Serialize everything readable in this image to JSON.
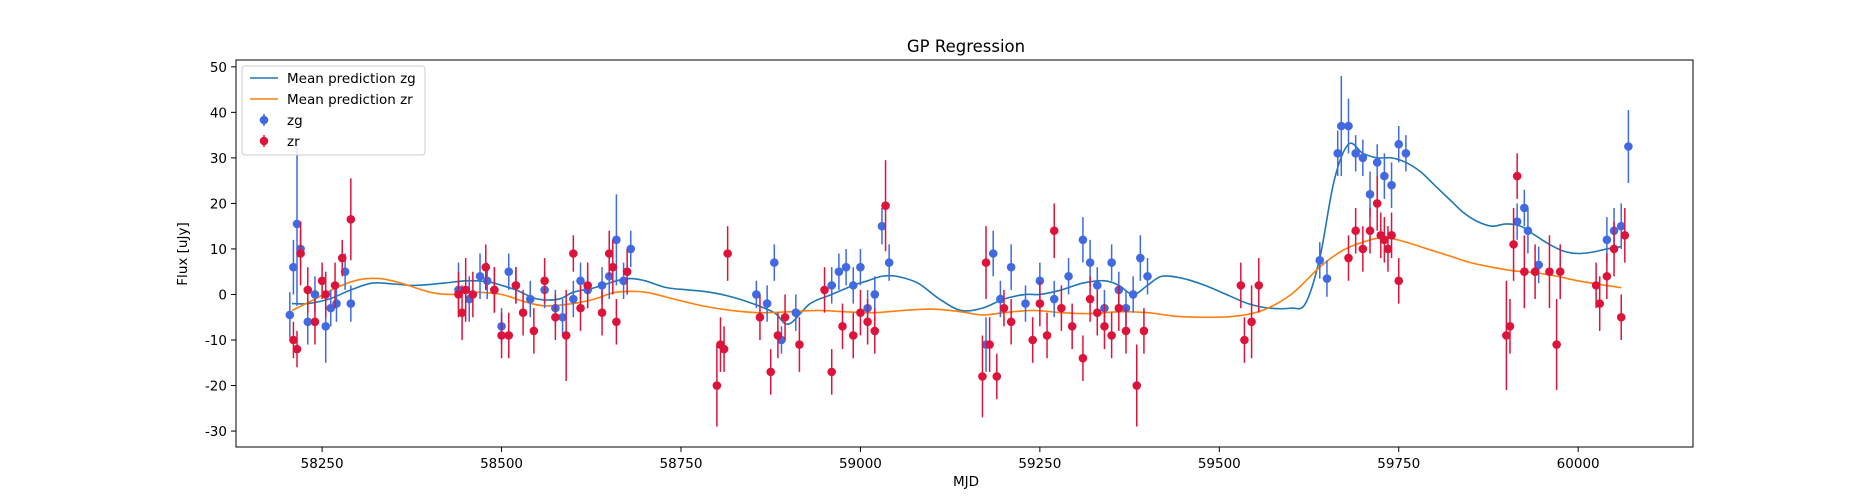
{
  "chart_data": {
    "type": "scatter",
    "title": "GP Regression",
    "xlabel": "MJD",
    "ylabel": "Flux [uJy]",
    "xlim": [
      58130,
      60160
    ],
    "ylim": [
      -33.5,
      51.5
    ],
    "xticks": [
      58250,
      58500,
      58750,
      59000,
      59250,
      59500,
      59750,
      60000
    ],
    "yticks": [
      -30,
      -20,
      -10,
      0,
      10,
      20,
      30,
      40,
      50
    ],
    "grid": false,
    "legend_position": "top-left",
    "legend": [
      {
        "label": "Mean prediction zg",
        "kind": "line",
        "color": "#1f77b4"
      },
      {
        "label": "Mean prediction zr",
        "kind": "line",
        "color": "#ff7f0e"
      },
      {
        "label": "zg",
        "kind": "errorbar",
        "color": "#4169e1"
      },
      {
        "label": "zr",
        "kind": "errorbar",
        "color": "#dc143c"
      }
    ],
    "series": [
      {
        "name": "Mean prediction zg",
        "kind": "line",
        "color": "#1f77b4",
        "x": [
          58208,
          58230,
          58260,
          58290,
          58320,
          58350,
          58380,
          58420,
          58450,
          58480,
          58500,
          58520,
          58550,
          58580,
          58600,
          58630,
          58660,
          58680,
          58700,
          58730,
          58760,
          58790,
          58820,
          58850,
          58880,
          58900,
          58930,
          58960,
          58990,
          59010,
          59030,
          59050,
          59080,
          59110,
          59140,
          59170,
          59200,
          59230,
          59250,
          59280,
          59310,
          59340,
          59360,
          59380,
          59400,
          59420,
          59450,
          59480,
          59510,
          59540,
          59570,
          59600,
          59620,
          59640,
          59660,
          59680,
          59700,
          59720,
          59740,
          59760,
          59780,
          59800,
          59820,
          59840,
          59860,
          59880,
          59900,
          59920,
          59940,
          59960,
          59980,
          60000,
          60020,
          60040,
          60060
        ],
        "y": [
          -2,
          -2,
          -1,
          1,
          2.5,
          2.3,
          2,
          2.5,
          3,
          2.8,
          2,
          1,
          -1,
          -1,
          0.5,
          1.5,
          3,
          3.5,
          3,
          1.5,
          1,
          0.5,
          -0.5,
          -2,
          -4,
          -6.5,
          -2,
          0,
          2,
          3,
          4,
          4,
          2.5,
          -1,
          -3.5,
          -3,
          -1,
          0,
          0,
          1,
          2.5,
          3,
          2,
          0,
          2,
          4,
          3.5,
          2,
          0,
          -2,
          -3,
          -3,
          -2,
          8,
          25,
          33,
          31,
          30,
          30,
          29,
          27,
          24,
          21,
          18,
          16,
          15,
          15.5,
          15,
          13,
          11,
          9.5,
          9,
          9.3,
          10,
          10.5
        ]
      },
      {
        "name": "Mean prediction zr",
        "kind": "line",
        "color": "#ff7f0e",
        "x": [
          58208,
          58240,
          58270,
          58300,
          58330,
          58360,
          58400,
          58430,
          58460,
          58500,
          58530,
          58560,
          58600,
          58630,
          58660,
          58700,
          58740,
          58780,
          58820,
          58860,
          58900,
          58940,
          58980,
          59020,
          59060,
          59100,
          59140,
          59170,
          59200,
          59240,
          59280,
          59320,
          59360,
          59400,
          59440,
          59480,
          59520,
          59560,
          59600,
          59640,
          59670,
          59700,
          59730,
          59760,
          59790,
          59820,
          59850,
          59880,
          59910,
          59940,
          59970,
          60000,
          60030,
          60060
        ],
        "y": [
          -3.5,
          -1,
          1.5,
          3.2,
          3.5,
          2.5,
          0.5,
          0,
          0.5,
          0,
          -1.5,
          -2.5,
          -2,
          -1,
          0.5,
          0.5,
          -1,
          -2.5,
          -3.5,
          -4,
          -3.8,
          -3.5,
          -3.8,
          -4,
          -3.5,
          -3.2,
          -3.8,
          -4.5,
          -4,
          -3.5,
          -4,
          -4.2,
          -3.8,
          -4,
          -4.8,
          -5,
          -4.8,
          -3.5,
          0,
          6,
          9.5,
          11.5,
          12.5,
          11.5,
          10,
          8.5,
          7,
          6,
          5.2,
          4.8,
          4,
          3,
          2.2,
          1.5
        ]
      },
      {
        "name": "zg",
        "kind": "errorbar",
        "color": "#4169e1",
        "x": [
          58205,
          58210,
          58215,
          58220,
          58230,
          58240,
          58255,
          58262,
          58270,
          58282,
          58290,
          58440,
          58455,
          58470,
          58480,
          58490,
          58500,
          58510,
          58520,
          58540,
          58560,
          58575,
          58585,
          58600,
          58610,
          58620,
          58640,
          58650,
          58660,
          58670,
          58680,
          58855,
          58870,
          58880,
          58890,
          58910,
          58960,
          58970,
          58980,
          58990,
          59000,
          59010,
          59020,
          59030,
          59040,
          59175,
          59185,
          59195,
          59210,
          59230,
          59250,
          59270,
          59290,
          59310,
          59320,
          59330,
          59340,
          59350,
          59360,
          59370,
          59380,
          59390,
          59400,
          59640,
          59650,
          59665,
          59670,
          59680,
          59690,
          59700,
          59710,
          59720,
          59730,
          59740,
          59750,
          59760,
          59915,
          59925,
          59930,
          59945,
          60040,
          60050,
          60060,
          60070
        ],
        "y": [
          -4.5,
          6,
          15.5,
          10,
          -6,
          0,
          -7,
          -3,
          -2,
          5,
          -2,
          1,
          -1,
          4,
          3,
          1,
          -7,
          5,
          2,
          -1,
          1,
          -3,
          -5,
          -1,
          3,
          1,
          2,
          4,
          12,
          3,
          10,
          0,
          -2,
          7,
          -10,
          -4,
          2,
          5,
          6,
          2,
          6,
          -3,
          0,
          15,
          7,
          -11,
          9,
          -1,
          6,
          -2,
          3,
          -1,
          4,
          12,
          7,
          2,
          -3,
          7,
          1,
          -3,
          0,
          8,
          4,
          7.5,
          3.5,
          31,
          37,
          37,
          31,
          30,
          22,
          29,
          26,
          24,
          33,
          31,
          16,
          19,
          14,
          6.5,
          12,
          14,
          15,
          32.5
        ],
        "err": [
          5,
          6,
          18,
          4,
          5,
          4,
          8,
          4,
          4,
          4,
          4,
          6,
          5,
          5,
          4,
          5,
          4,
          4,
          4,
          4,
          4,
          4,
          4,
          4,
          4,
          4,
          4,
          5,
          10,
          4,
          4,
          3,
          4,
          4,
          3,
          4,
          4,
          4,
          4,
          4,
          4,
          4,
          4,
          4,
          4,
          6,
          5,
          4,
          5,
          4,
          4,
          4,
          4,
          5,
          5,
          4,
          4,
          4,
          4,
          4,
          4,
          5,
          4,
          4,
          4,
          5,
          11,
          6,
          4,
          4,
          5,
          4,
          5,
          5,
          4,
          4,
          4,
          4,
          5,
          4,
          5,
          5,
          5,
          8
        ]
      },
      {
        "name": "zr",
        "kind": "errorbar",
        "color": "#dc143c",
        "x": [
          58210,
          58215,
          58220,
          58230,
          58240,
          58250,
          58255,
          58268,
          58278,
          58290,
          58440,
          58445,
          58450,
          58460,
          58478,
          58490,
          58500,
          58510,
          58520,
          58530,
          58545,
          58560,
          58575,
          58590,
          58600,
          58610,
          58620,
          58640,
          58650,
          58655,
          58660,
          58675,
          58800,
          58805,
          58810,
          58815,
          58860,
          58875,
          58885,
          58895,
          58915,
          58950,
          58960,
          58975,
          58990,
          59000,
          59010,
          59020,
          59035,
          59170,
          59175,
          59180,
          59190,
          59200,
          59210,
          59240,
          59250,
          59260,
          59270,
          59280,
          59295,
          59310,
          59320,
          59330,
          59340,
          59350,
          59360,
          59370,
          59385,
          59395,
          59530,
          59535,
          59545,
          59555,
          59680,
          59690,
          59700,
          59710,
          59720,
          59725,
          59730,
          59735,
          59740,
          59750,
          59900,
          59905,
          59910,
          59915,
          59925,
          59940,
          59960,
          59970,
          59975,
          60025,
          60030,
          60040,
          60050,
          60060,
          60065
        ],
        "y": [
          -10,
          -12,
          9,
          1,
          -6,
          3,
          0,
          2,
          8,
          16.5,
          0,
          -4,
          1,
          0,
          6,
          1,
          -9,
          -9,
          2,
          -4,
          -8,
          3,
          -5,
          -9,
          9,
          -3,
          2,
          -4,
          9,
          6,
          -6,
          5,
          -20,
          -11,
          -12,
          9,
          -5,
          -17,
          -9,
          -5,
          -11,
          1,
          -17,
          -7,
          -9,
          -4,
          -6,
          -8,
          19.5,
          -18,
          7,
          -11,
          -18,
          -3,
          -6,
          -10,
          -2,
          -9,
          14,
          -3,
          -7,
          -14,
          -1,
          -4,
          -7,
          -9,
          -3,
          -8,
          -20,
          -8,
          2,
          -10,
          -6,
          2,
          8,
          14,
          10,
          14,
          20,
          13,
          12,
          10,
          13,
          3,
          -9,
          -7,
          11,
          26,
          5,
          5,
          5,
          -11,
          5,
          2,
          -2,
          4,
          10,
          -5,
          13
        ],
        "err": [
          4,
          4,
          7,
          5,
          5,
          4,
          5,
          5,
          4,
          9,
          5,
          6,
          7,
          5,
          5,
          5,
          5,
          5,
          4,
          5,
          5,
          5,
          5,
          10,
          4,
          5,
          5,
          5,
          5,
          6,
          5,
          5,
          9,
          6,
          5,
          6,
          5,
          5,
          5,
          5,
          6,
          5,
          5,
          5,
          5,
          5,
          5,
          5,
          10,
          9,
          8,
          6,
          5,
          4,
          5,
          5,
          5,
          5,
          6,
          5,
          5,
          5,
          5,
          5,
          5,
          5,
          5,
          5,
          9,
          5,
          5,
          5,
          8,
          6,
          5,
          5,
          5,
          5,
          6,
          5,
          5,
          5,
          5,
          5,
          12,
          6,
          8,
          5,
          8,
          6,
          8,
          10,
          6,
          5,
          6,
          5,
          6,
          5,
          6
        ]
      }
    ]
  }
}
